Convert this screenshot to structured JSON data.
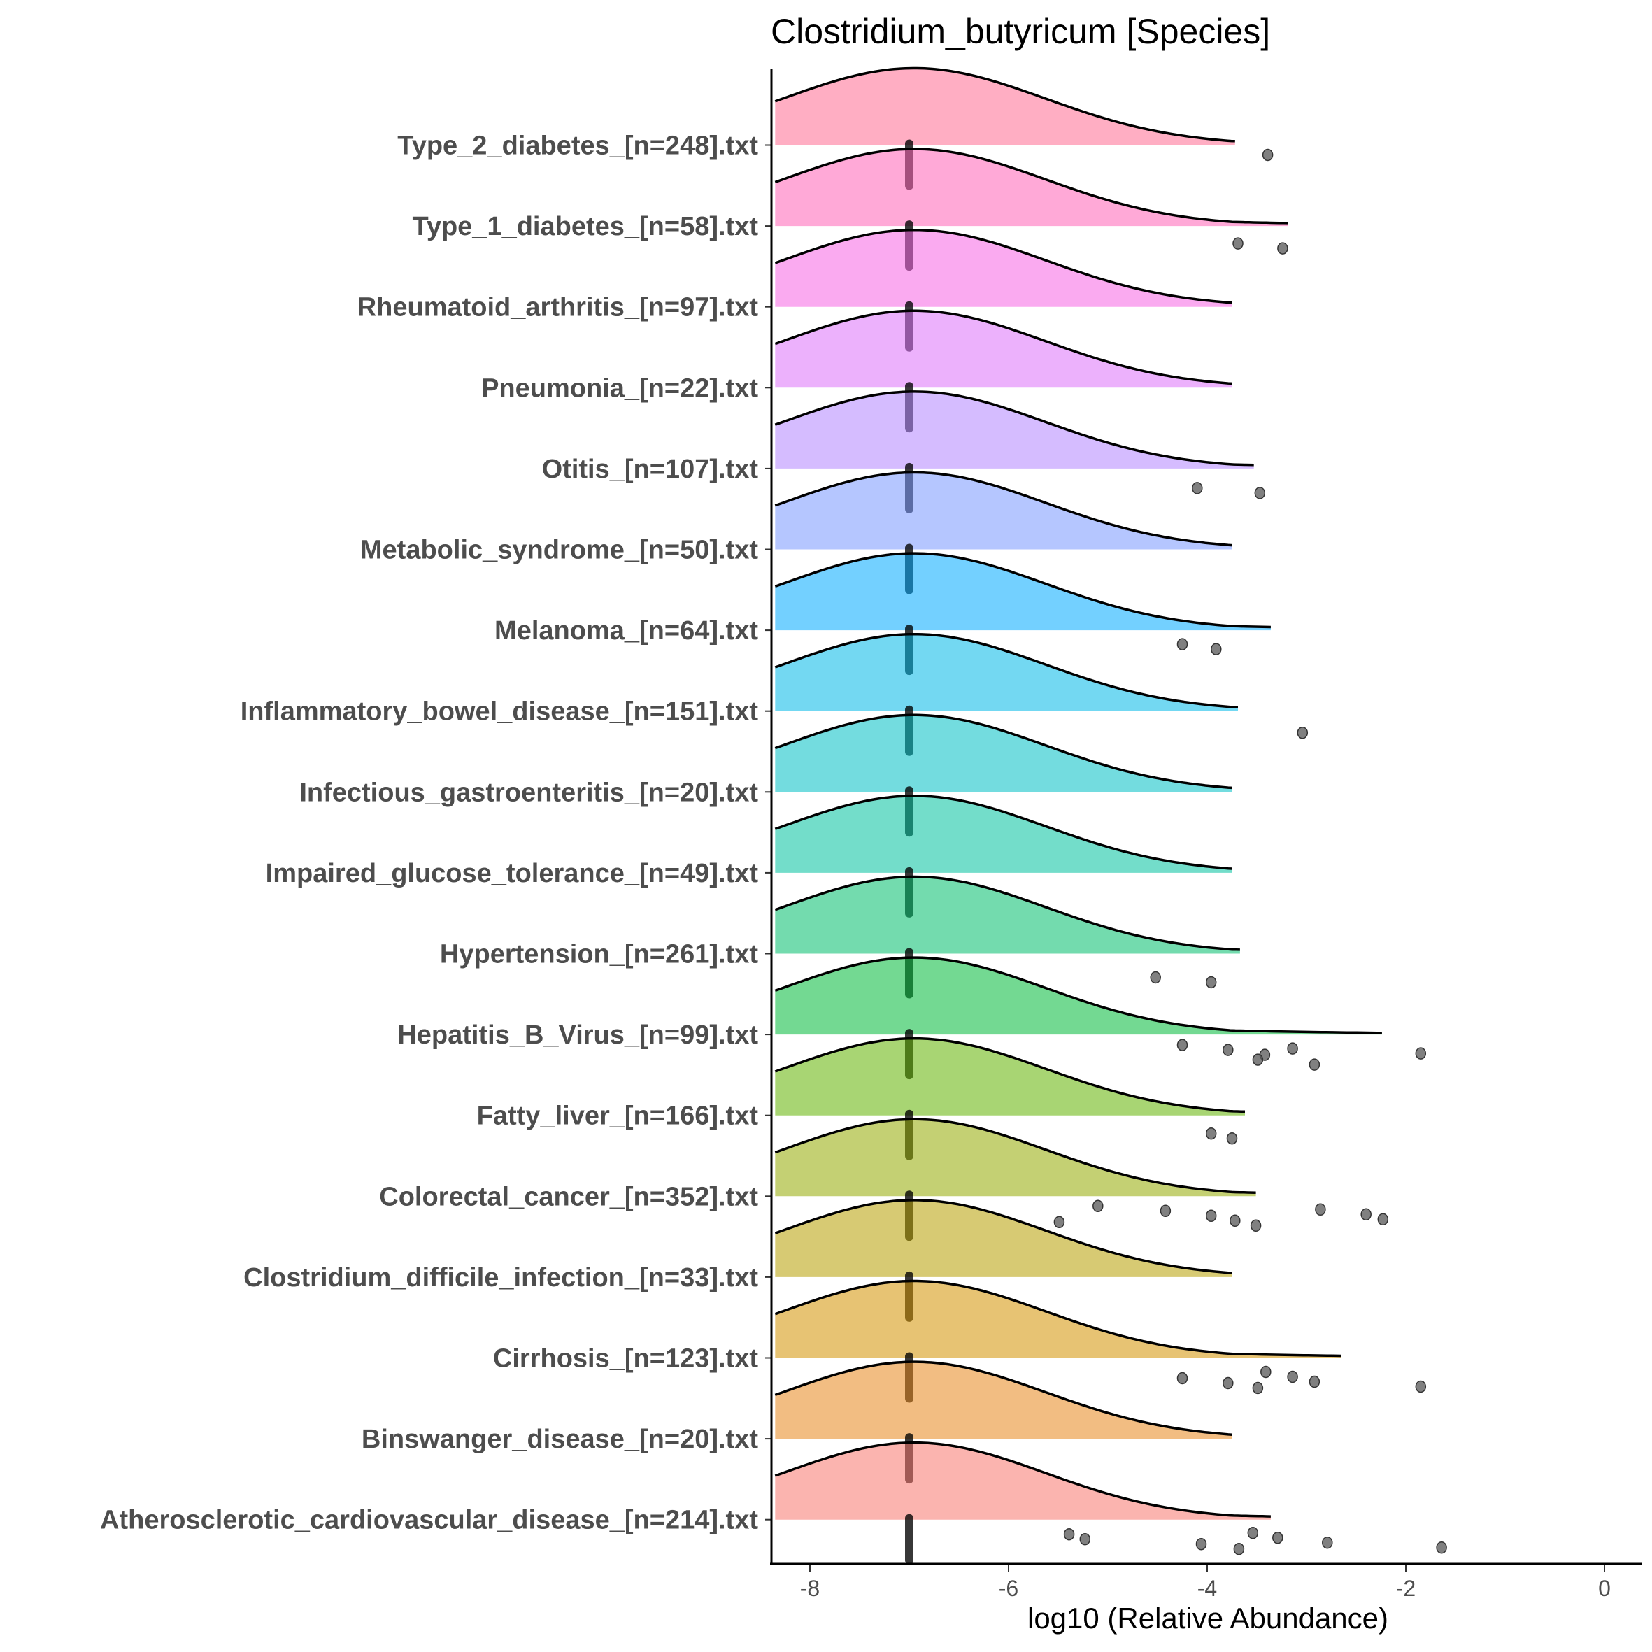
{
  "chart_data": {
    "type": "ridgeline",
    "title": "Clostridium_butyricum [Species]",
    "xlabel": "log10 (Relative Abundance)",
    "ylabel": "",
    "xlim": [
      -8.35,
      0.45
    ],
    "xticks": [
      -8,
      -6,
      -4,
      -2,
      0
    ],
    "grid": false,
    "legend": "none",
    "median": -7,
    "density_peak": -6.95,
    "fill_alpha": 0.55,
    "categories": [
      {
        "label": "Type_2_diabetes_[n=248].txt",
        "color": "#FF6C91",
        "density_max": -3.72,
        "outliers": [
          -3.39
        ]
      },
      {
        "label": "Type_1_diabetes_[n=58].txt",
        "color": "#FF63B6",
        "density_max": -3.19,
        "outliers": [
          -3.69,
          -3.24
        ]
      },
      {
        "label": "Rheumatoid_arthritis_[n=97].txt",
        "color": "#F564E3",
        "density_max": -3.75,
        "outliers": []
      },
      {
        "label": "Pneumonia_[n=22].txt",
        "color": "#DC71FA",
        "density_max": -3.75,
        "outliers": []
      },
      {
        "label": "Otitis_[n=107].txt",
        "color": "#B385FF",
        "density_max": -3.53,
        "outliers": [
          -4.1,
          -3.47
        ]
      },
      {
        "label": "Metabolic_syndrome_[n=50].txt",
        "color": "#7997FF",
        "density_max": -3.75,
        "outliers": []
      },
      {
        "label": "Melanoma_[n=64].txt",
        "color": "#00A9FF",
        "density_max": -3.36,
        "outliers": [
          -4.25,
          -3.91
        ]
      },
      {
        "label": "Inflammatory_bowel_disease_[n=151].txt",
        "color": "#00B8E7",
        "density_max": -3.69,
        "outliers": [
          -3.04
        ]
      },
      {
        "label": "Infectious_gastroenteritis_[n=20].txt",
        "color": "#00BFC4",
        "density_max": -3.75,
        "outliers": []
      },
      {
        "label": "Impaired_glucose_tolerance_[n=49].txt",
        "color": "#00C19F",
        "density_max": -3.75,
        "outliers": []
      },
      {
        "label": "Hypertension_[n=261].txt",
        "color": "#00BE6C",
        "density_max": -3.67,
        "outliers": [
          -4.52,
          -3.96
        ]
      },
      {
        "label": "Hepatitis_B_Virus_[n=99].txt",
        "color": "#00BA38",
        "density_max": -2.24,
        "outliers": [
          -4.25,
          -3.79,
          -3.42,
          -3.49,
          -2.92,
          -3.14,
          -1.85
        ]
      },
      {
        "label": "Fatty_liver_[n=166].txt",
        "color": "#61B200",
        "density_max": -3.62,
        "outliers": [
          -3.96,
          -3.75
        ]
      },
      {
        "label": "Colorectal_cancer_[n=352].txt",
        "color": "#94A900",
        "density_max": -3.51,
        "outliers": [
          -5.49,
          -5.1,
          -4.42,
          -3.96,
          -3.72,
          -3.51,
          -2.86,
          -2.4,
          -2.23
        ]
      },
      {
        "label": "Clostridium_difficile_infection_[n=33].txt",
        "color": "#B79F00",
        "density_max": -3.75,
        "outliers": []
      },
      {
        "label": "Cirrhosis_[n=123].txt",
        "color": "#D39200",
        "density_max": -2.65,
        "outliers": [
          -4.25,
          -3.79,
          -3.49,
          -3.41,
          -3.14,
          -2.92,
          -1.85
        ]
      },
      {
        "label": "Binswanger_disease_[n=20].txt",
        "color": "#E7861B",
        "density_max": -3.75,
        "outliers": []
      },
      {
        "label": "Atherosclerotic_cardiovascular_disease_[n=214].txt",
        "color": "#F8766D",
        "density_max": -3.36,
        "outliers": [
          -5.39,
          -5.23,
          -4.06,
          -3.68,
          -3.54,
          -3.29,
          -2.79,
          -1.64
        ]
      }
    ]
  }
}
